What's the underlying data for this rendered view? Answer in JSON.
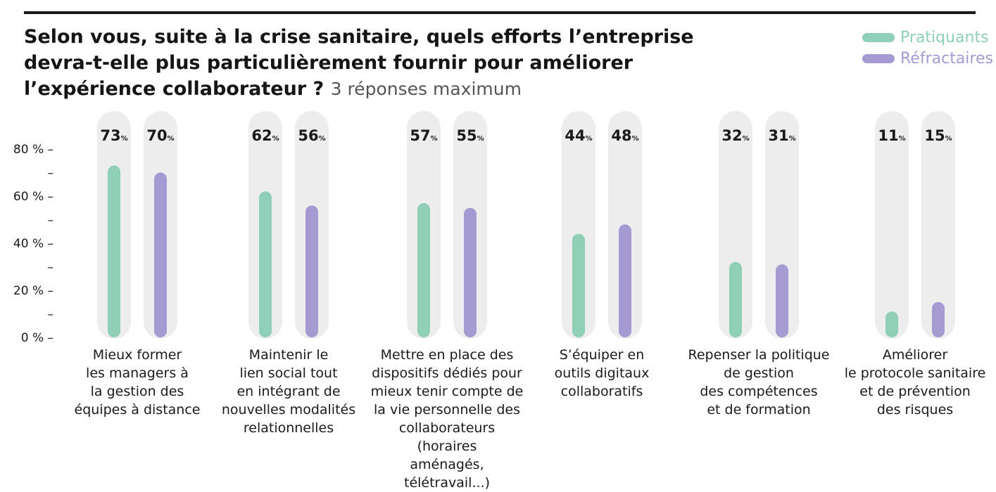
{
  "title": "Selon vous, suite à la crise sanitaire, quels efforts l’entreprise devra-t-elle plus particulièrement fournir pour améliorer l’expérience collaborateur ?",
  "subtitle": "3 réponses maximum",
  "legend": [
    {
      "name": "Pratiquants",
      "color": "#8ecfb6"
    },
    {
      "name": "Réfractaires",
      "color": "#a69ad2"
    }
  ],
  "chart_data": {
    "type": "bar",
    "title": "Selon vous, suite à la crise sanitaire, quels efforts l’entreprise devra-t-elle plus particulièrement fournir pour améliorer l’expérience collaborateur ?",
    "subtitle": "3 réponses maximum",
    "categories": [
      "Mieux former les managers à la gestion des équipes à distance",
      "Maintenir le lien social tout en intégrant de nouvelles modalités relationnelles",
      "Mettre en place des dispositifs dédiés pour mieux tenir compte de la vie personnelle des collaborateurs (horaires aménagés, télétravail...)",
      "S’équiper en outils digitaux collaboratifs",
      "Repenser la politique de gestion des compétences et de formation",
      "Améliorer le protocole sanitaire et de prévention des risques"
    ],
    "category_lines": [
      [
        "Mieux former",
        "les managers à",
        "la gestion des",
        "équipes à distance"
      ],
      [
        "Maintenir le",
        "lien social tout",
        "en intégrant de",
        "nouvelles modalités",
        "relationnelles"
      ],
      [
        "Mettre en place des",
        "dispositifs dédiés pour",
        "mieux tenir compte de",
        "la vie personnelle des",
        "collaborateurs (horaires",
        "aménagés, télétravail...)"
      ],
      [
        "S’équiper en",
        "outils digitaux",
        "collaboratifs"
      ],
      [
        "Repenser la politique",
        "de gestion",
        "des compétences",
        "et de formation"
      ],
      [
        "Améliorer",
        "le protocole sanitaire",
        "et de prévention",
        "des risques"
      ]
    ],
    "series": [
      {
        "name": "Pratiquants",
        "values": [
          73,
          62,
          57,
          44,
          32,
          11
        ],
        "color": "#8ecfb6"
      },
      {
        "name": "Réfractaires",
        "values": [
          70,
          56,
          55,
          48,
          31,
          15
        ],
        "color": "#a69ad2"
      }
    ],
    "value_suffix": "%",
    "yticks": [
      {
        "value": 0,
        "label": "0 % –"
      },
      {
        "value": 10,
        "label": "–"
      },
      {
        "value": 20,
        "label": "20 % –"
      },
      {
        "value": 30,
        "label": "–"
      },
      {
        "value": 40,
        "label": "40 % –"
      },
      {
        "value": 50,
        "label": "–"
      },
      {
        "value": 60,
        "label": "60 % –"
      },
      {
        "value": 70,
        "label": "–"
      },
      {
        "value": 80,
        "label": "80 % –"
      }
    ],
    "ylim": [
      0,
      80
    ],
    "xlabel": "",
    "ylabel": "",
    "grid": false,
    "legend_position": "top-right"
  }
}
